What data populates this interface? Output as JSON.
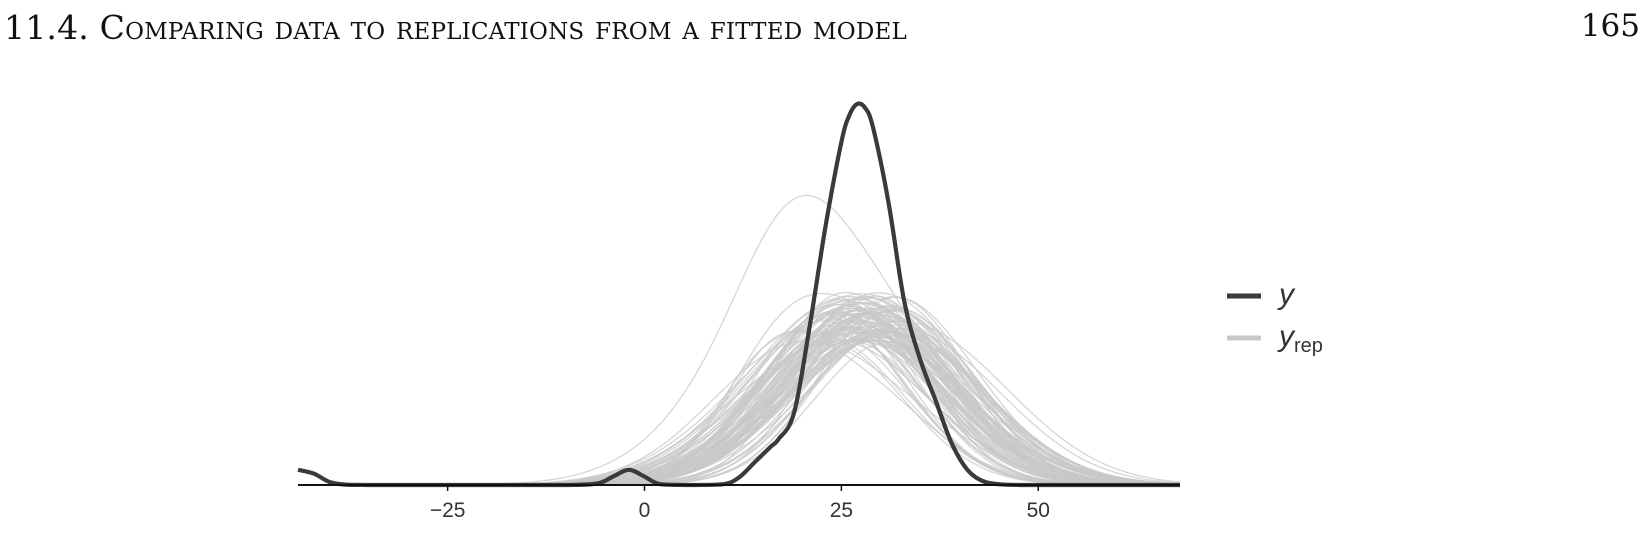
{
  "header": {
    "section_title": "11.4.  Comparing data to replications from a fitted model",
    "page_number": "165"
  },
  "chart_data": {
    "type": "line",
    "title": "",
    "xlabel": "",
    "ylabel": "",
    "xlim": [
      -44,
      68
    ],
    "x_ticks": [
      "−25",
      "0",
      "25",
      "50"
    ],
    "x_tick_values": [
      -25,
      0,
      25,
      50
    ],
    "y_axis_shown": false,
    "grid": false,
    "legend_position": "right",
    "legend": [
      {
        "series": "y",
        "label": "y",
        "subscript": "",
        "color": "#3a3a3a"
      },
      {
        "series": "y_rep",
        "label": "y",
        "subscript": "rep",
        "color": "#c8c8c8"
      }
    ],
    "series": [
      {
        "name": "y",
        "color": "#3a3a3a",
        "x": [
          -44,
          -42,
          -40,
          -38,
          -35,
          -30,
          -20,
          -10,
          -6,
          -4,
          -2,
          0,
          2,
          6,
          10,
          12,
          14,
          16,
          17,
          19,
          21,
          23,
          25,
          26,
          27,
          28,
          29,
          31,
          33,
          35,
          37,
          39,
          41,
          43,
          45,
          48,
          55,
          68
        ],
        "y": [
          0.04,
          0.03,
          0.008,
          0.001,
          0,
          0,
          0,
          0,
          0.004,
          0.022,
          0.04,
          0.022,
          0.002,
          0,
          0.002,
          0.02,
          0.06,
          0.1,
          0.12,
          0.19,
          0.42,
          0.68,
          0.9,
          0.97,
          1.0,
          0.99,
          0.94,
          0.74,
          0.48,
          0.33,
          0.22,
          0.11,
          0.04,
          0.01,
          0.002,
          0,
          0,
          0
        ]
      },
      {
        "name": "y_rep",
        "color": "#c8c8c8",
        "count": 100,
        "mean_location": 27,
        "location_spread": 4,
        "mean_scale": 11,
        "scale_spread": 2,
        "typical_peak_height": 0.44,
        "max_peak_height": 0.76
      }
    ]
  }
}
